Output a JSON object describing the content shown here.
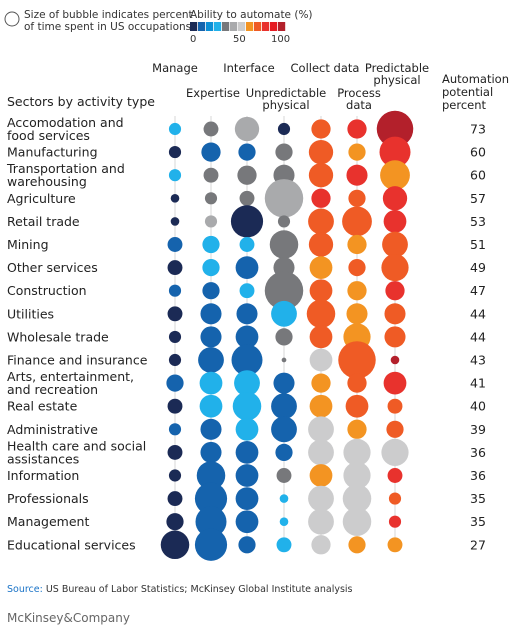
{
  "size_legend": {
    "line1": "Size of bubble indicates percent",
    "line2": "of time spent in US occupations"
  },
  "color_legend": {
    "title": "Ability to automate (%)",
    "ticks": [
      "0",
      "50",
      "100"
    ],
    "swatches": [
      "#1b2a55",
      "#1563ad",
      "#0b8fd6",
      "#21b1ea",
      "#77787b",
      "#a9aaac",
      "#cccccd",
      "#f39422",
      "#ef5b25",
      "#e8322d",
      "#e51c23",
      "#b3202b"
    ]
  },
  "chart_data": {
    "type": "bubble",
    "row_header": "Sectors by activity type",
    "potential_header": [
      "Automation",
      "potential",
      "percent"
    ],
    "columns": [
      "Manage",
      "Expertise",
      "Interface",
      "Unpredictable physical",
      "Collect data",
      "Process data",
      "Predictable physical"
    ],
    "rows": [
      {
        "label": "Accomodation and food services",
        "potential": 73,
        "size": [
          2,
          3,
          8,
          2,
          5,
          5,
          18
        ],
        "color": [
          "#21b1ea",
          "#77787b",
          "#a9aaac",
          "#1b2a55",
          "#ef5b25",
          "#e8322d",
          "#b3202b"
        ]
      },
      {
        "label": "Manufacturing",
        "potential": 60,
        "size": [
          2,
          5,
          4,
          4,
          8,
          4,
          13
        ],
        "color": [
          "#1b2a55",
          "#1563ad",
          "#1563ad",
          "#77787b",
          "#ef5b25",
          "#f39422",
          "#e8322d"
        ]
      },
      {
        "label": "Transportation and warehousing",
        "potential": 60,
        "size": [
          2,
          3,
          5,
          6,
          8,
          6,
          12
        ],
        "color": [
          "#21b1ea",
          "#77787b",
          "#77787b",
          "#77787b",
          "#ef5b25",
          "#e8322d",
          "#f39422"
        ]
      },
      {
        "label": "Agriculture",
        "potential": 57,
        "size": [
          1,
          2,
          3,
          20,
          5,
          4,
          8
        ],
        "color": [
          "#1b2a55",
          "#77787b",
          "#77787b",
          "#a9aaac",
          "#e8322d",
          "#ef5b25",
          "#e8322d"
        ]
      },
      {
        "label": "Retail trade",
        "potential": 53,
        "size": [
          1,
          2,
          14,
          2,
          9,
          12,
          7
        ],
        "color": [
          "#1b2a55",
          "#a9aaac",
          "#1b2a55",
          "#77787b",
          "#ef5b25",
          "#ef5b25",
          "#e8322d"
        ]
      },
      {
        "label": "Mining",
        "potential": 51,
        "size": [
          3,
          4,
          3,
          11,
          8,
          5,
          9
        ],
        "color": [
          "#1563ad",
          "#21b1ea",
          "#21b1ea",
          "#77787b",
          "#ef5b25",
          "#f39422",
          "#ef5b25"
        ]
      },
      {
        "label": "Other services",
        "potential": 49,
        "size": [
          3,
          4,
          7,
          6,
          7,
          4,
          10
        ],
        "color": [
          "#1b2a55",
          "#21b1ea",
          "#1563ad",
          "#77787b",
          "#f39422",
          "#ef5b25",
          "#ef5b25"
        ]
      },
      {
        "label": "Construction",
        "potential": 47,
        "size": [
          2,
          4,
          3,
          20,
          7,
          5,
          5
        ],
        "color": [
          "#1563ad",
          "#1563ad",
          "#21b1ea",
          "#77787b",
          "#ef5b25",
          "#f39422",
          "#e8322d"
        ]
      },
      {
        "label": "Utilities",
        "potential": 44,
        "size": [
          3,
          6,
          6,
          9,
          11,
          6,
          6
        ],
        "color": [
          "#1b2a55",
          "#1563ad",
          "#1563ad",
          "#21b1ea",
          "#ef5b25",
          "#f39422",
          "#ef5b25"
        ]
      },
      {
        "label": "Wholesale trade",
        "potential": 44,
        "size": [
          2,
          6,
          7,
          4,
          7,
          10,
          6
        ],
        "color": [
          "#1b2a55",
          "#1563ad",
          "#1563ad",
          "#77787b",
          "#ef5b25",
          "#f39422",
          "#ef5b25"
        ]
      },
      {
        "label": "Finance and insurance",
        "potential": 43,
        "size": [
          2,
          9,
          13,
          0.3,
          7,
          19,
          1
        ],
        "color": [
          "#1b2a55",
          "#1563ad",
          "#1563ad",
          "#77787b",
          "#cccccd",
          "#ef5b25",
          "#b3202b"
        ]
      },
      {
        "label": "Arts, entertainment, and recreation",
        "potential": 41,
        "size": [
          4,
          7,
          9,
          6,
          5,
          5,
          7
        ],
        "color": [
          "#1563ad",
          "#21b1ea",
          "#21b1ea",
          "#1563ad",
          "#f39422",
          "#ef5b25",
          "#e8322d"
        ]
      },
      {
        "label": "Real estate",
        "potential": 40,
        "size": [
          3,
          7,
          11,
          9,
          7,
          7,
          3
        ],
        "color": [
          "#1b2a55",
          "#21b1ea",
          "#21b1ea",
          "#1563ad",
          "#f39422",
          "#ef5b25",
          "#ef5b25"
        ]
      },
      {
        "label": "Administrative",
        "potential": 39,
        "size": [
          2,
          6,
          7,
          9,
          9,
          5,
          4
        ],
        "color": [
          "#1563ad",
          "#1563ad",
          "#21b1ea",
          "#1563ad",
          "#cccccd",
          "#f39422",
          "#ef5b25"
        ]
      },
      {
        "label": "Health care and social assistances",
        "potential": 36,
        "size": [
          3,
          6,
          7,
          4,
          9,
          10,
          10
        ],
        "color": [
          "#1b2a55",
          "#1563ad",
          "#1563ad",
          "#1563ad",
          "#cccccd",
          "#cccccd",
          "#cccccd"
        ]
      },
      {
        "label": "Information",
        "potential": 36,
        "size": [
          2,
          11,
          7,
          3,
          7,
          10,
          3
        ],
        "color": [
          "#1b2a55",
          "#1563ad",
          "#1563ad",
          "#77787b",
          "#f39422",
          "#cccccd",
          "#e8322d"
        ]
      },
      {
        "label": "Professionals",
        "potential": 35,
        "size": [
          3,
          14,
          7,
          1,
          9,
          11,
          2
        ],
        "color": [
          "#1b2a55",
          "#1563ad",
          "#1563ad",
          "#21b1ea",
          "#cccccd",
          "#cccccd",
          "#ef5b25"
        ]
      },
      {
        "label": "Management",
        "potential": 35,
        "size": [
          4,
          13,
          7,
          1,
          9,
          11,
          2
        ],
        "color": [
          "#1b2a55",
          "#1563ad",
          "#1563ad",
          "#21b1ea",
          "#cccccd",
          "#cccccd",
          "#e8322d"
        ]
      },
      {
        "label": "Educational services",
        "potential": 27,
        "size": [
          11,
          14,
          4,
          3,
          5,
          4,
          3
        ],
        "color": [
          "#1b2a55",
          "#1563ad",
          "#1563ad",
          "#21b1ea",
          "#cccccd",
          "#f39422",
          "#f39422"
        ]
      }
    ]
  },
  "source": {
    "label": "Source:",
    "text": "US Bureau of Labor Statistics; McKinsey Global Institute analysis"
  },
  "brand": "McKinsey&Company"
}
